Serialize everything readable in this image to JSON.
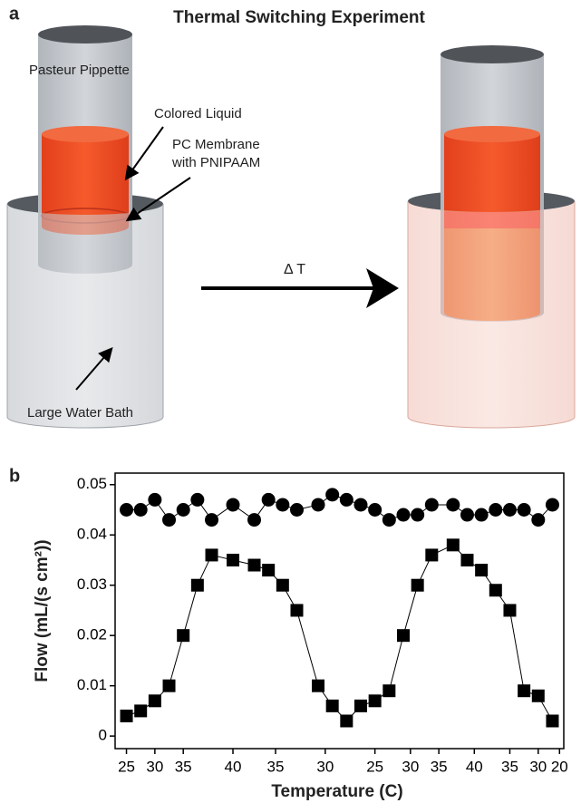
{
  "diagram": {
    "panel_label": "a",
    "title": "Thermal Switching Experiment",
    "pipette": "Pasteur Pippette",
    "liquid": "Colored Liquid",
    "membrane": [
      "PC Membrane",
      "with PNIPAAM"
    ],
    "bath": "Large Water Bath",
    "arrow": "Δ T"
  },
  "chart_data": {
    "type": "line",
    "panel_label": "b",
    "x_label": "Temperature (C)",
    "y_label": "Flow (mL/(s cm²))",
    "x": [
      0,
      1,
      2,
      3,
      4,
      5,
      6,
      7.5,
      9,
      10,
      11,
      12,
      13.5,
      14.5,
      15.5,
      16.5,
      17.5,
      18.5,
      19.5,
      20.5,
      21.5,
      23,
      24,
      25,
      26,
      27,
      28,
      29,
      30
    ],
    "series": [
      {
        "color": "#000000",
        "marker": "square",
        "values": [
          0.004,
          0.005,
          0.007,
          0.01,
          0.02,
          0.03,
          0.036,
          0.035,
          0.034,
          0.033,
          0.03,
          0.025,
          0.01,
          0.006,
          0.003,
          0.006,
          0.007,
          0.009,
          0.02,
          0.03,
          0.036,
          0.038,
          0.035,
          0.033,
          0.029,
          0.025,
          0.009,
          0.008,
          0.003
        ]
      },
      {
        "color": "#000000",
        "marker": "circle",
        "values": [
          0.045,
          0.045,
          0.047,
          0.043,
          0.045,
          0.047,
          0.043,
          0.046,
          0.043,
          0.047,
          0.046,
          0.045,
          0.046,
          0.048,
          0.047,
          0.046,
          0.045,
          0.043,
          0.044,
          0.044,
          0.046,
          0.046,
          0.044,
          0.044,
          0.045,
          0.045,
          0.045,
          0.043,
          0.046
        ]
      }
    ],
    "xlim": [
      -0.8,
      30.8
    ],
    "ylim": [
      -0.0025,
      0.0523
    ],
    "xticks": [
      {
        "value": 0,
        "label": "25"
      },
      {
        "value": 2,
        "label": "30"
      },
      {
        "value": 4,
        "label": "35"
      },
      {
        "value": 7.5,
        "label": "40"
      },
      {
        "value": 10.5,
        "label": "35"
      },
      {
        "value": 14,
        "label": "30"
      },
      {
        "value": 17.5,
        "label": "25"
      },
      {
        "value": 20,
        "label": "30"
      },
      {
        "value": 22,
        "label": "35"
      },
      {
        "value": 24.5,
        "label": "40"
      },
      {
        "value": 27,
        "label": "35"
      },
      {
        "value": 29,
        "label": "30"
      },
      {
        "value": 30.5,
        "label": "20"
      }
    ],
    "yticks": [
      0,
      0.01,
      0.02,
      0.03,
      0.04,
      0.05
    ]
  }
}
